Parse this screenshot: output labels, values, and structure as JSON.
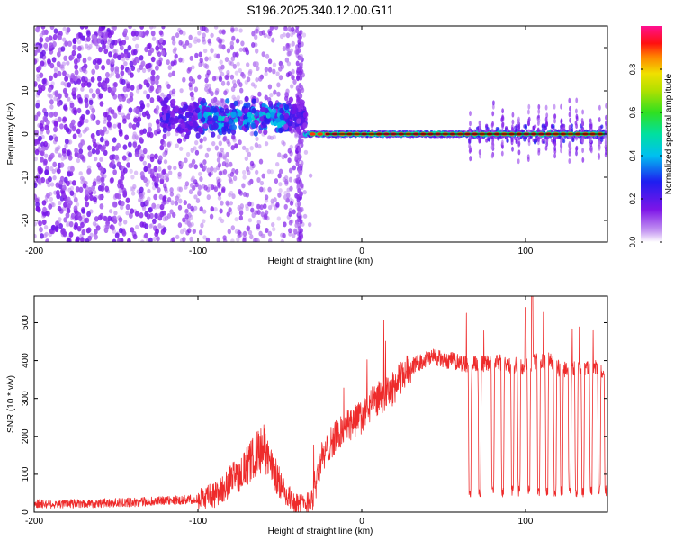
{
  "title": "S196.2025.340.12.00.G11",
  "chart_data": [
    {
      "type": "heatmap",
      "xlabel": "Height of straight line (km)",
      "ylabel": "Frequency (Hz)",
      "xlim": [
        -200,
        150
      ],
      "ylim": [
        -25,
        25
      ],
      "xticks": [
        -200,
        -100,
        0,
        100
      ],
      "xtick_labels": [
        "-200",
        "-100",
        "0",
        "100"
      ],
      "yticks": [
        -20,
        -10,
        0,
        10,
        20
      ],
      "ytick_labels": [
        "-20",
        "-10",
        "0",
        "10",
        "20"
      ],
      "colorbar": {
        "label": "Normalized spectral amplitude",
        "range": [
          0,
          1
        ],
        "ticks": [
          0,
          0.2,
          0.4,
          0.6,
          0.8
        ],
        "tick_labels": [
          "0.0",
          "0.2",
          "0.4",
          "0.6",
          "0.8"
        ],
        "colormap": "rainbow (white-violet-blue-cyan-green-yellow-orange-red-magenta)"
      },
      "regions": [
        {
          "x_range": [
            -200,
            -125
          ],
          "description": "diffuse noise, violet speckle",
          "amplitude": 0.1
        },
        {
          "x_range": [
            -125,
            -35
          ],
          "description": "scattered signal concentrated near 0-10 Hz",
          "amplitude": 0.3
        },
        {
          "x_range": [
            -35,
            65
          ],
          "description": "coherent line near 0 Hz",
          "amplitude": 0.95
        },
        {
          "x_range": [
            65,
            150
          ],
          "description": "coherent line near 0 Hz with periodic vertical spread",
          "amplitude": 0.9
        }
      ]
    },
    {
      "type": "line",
      "xlabel": "Height of straight line (km)",
      "ylabel": "SNR (10 * v/v)",
      "xlim": [
        -200,
        150
      ],
      "ylim": [
        0,
        570
      ],
      "xticks": [
        -200,
        -100,
        0,
        100
      ],
      "xtick_labels": [
        "-200",
        "-100",
        "0",
        "100"
      ],
      "yticks": [
        0,
        100,
        200,
        300,
        400,
        500
      ],
      "ytick_labels": [
        "0",
        "100",
        "200",
        "300",
        "400",
        "500"
      ],
      "series_color": "#ee2b2b",
      "series": [
        {
          "name": "SNR",
          "x": [
            -200,
            -180,
            -160,
            -140,
            -120,
            -100,
            -90,
            -85,
            -80,
            -75,
            -70,
            -65,
            -60,
            -55,
            -50,
            -45,
            -40,
            -35,
            -30,
            -28,
            -25,
            -22,
            -20,
            -15,
            -10,
            -5,
            0,
            5,
            10,
            15,
            20,
            25,
            30,
            35,
            40,
            45,
            50,
            55,
            60,
            65,
            70,
            75,
            80,
            85,
            90,
            95,
            100,
            105,
            110,
            115,
            120,
            125,
            130,
            135,
            140,
            145,
            150
          ],
          "y": [
            22,
            22,
            24,
            26,
            30,
            35,
            45,
            60,
            85,
            100,
            120,
            150,
            170,
            120,
            75,
            40,
            25,
            20,
            40,
            80,
            140,
            150,
            180,
            200,
            225,
            240,
            250,
            280,
            300,
            310,
            330,
            360,
            385,
            395,
            405,
            410,
            400,
            400,
            395,
            390,
            395,
            390,
            395,
            395,
            385,
            390,
            380,
            400,
            395,
            400,
            380,
            375,
            380,
            380,
            385,
            375,
            380
          ]
        }
      ],
      "dips": {
        "description": "periodic drops to low SNR beyond 65 km",
        "x": [
          66,
          72,
          80,
          86,
          92,
          96,
          102,
          108,
          113,
          118,
          122,
          127,
          131,
          135,
          140,
          145,
          149
        ],
        "min_value": 40
      }
    }
  ]
}
